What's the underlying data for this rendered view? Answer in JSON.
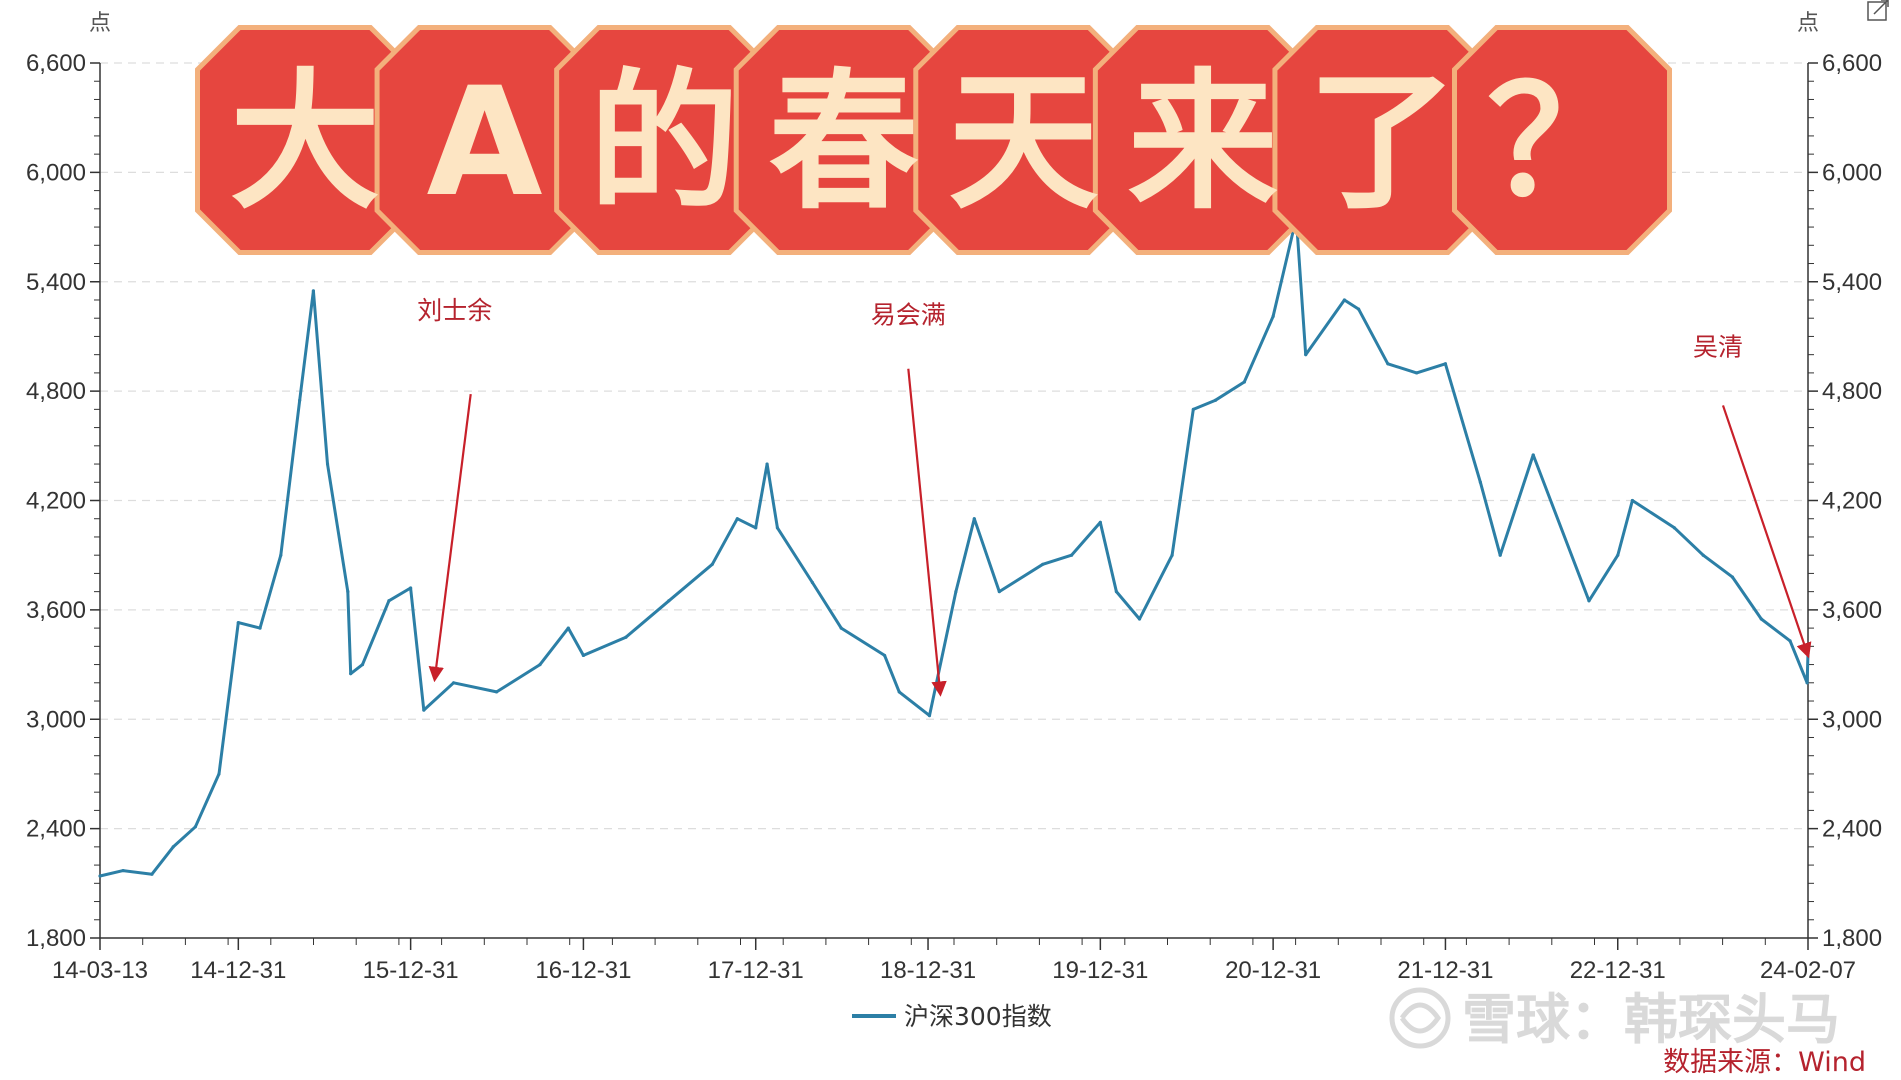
{
  "banner": {
    "chars": [
      "大",
      "A",
      "的",
      "春",
      "天",
      "来",
      "了",
      "？"
    ],
    "fill_color": "#e6463f",
    "border_color": "#f3b07c",
    "text_color": "#fde5c3"
  },
  "watermark": {
    "text": "雪球：韩琛头马",
    "logo_icon": "snowball-logo-icon"
  },
  "source": {
    "text": "数据来源：Wind"
  },
  "export_icon": "external-link-icon",
  "chart_data": {
    "type": "line",
    "title": "",
    "y_unit_left": "点",
    "y_unit_right": "点",
    "ylim": [
      1800,
      6600
    ],
    "y_ticks": [
      1800,
      2400,
      3000,
      3600,
      4200,
      4800,
      5400,
      6000,
      6600
    ],
    "y_tick_labels": [
      "1,800",
      "2,400",
      "3,000",
      "3,600",
      "4,200",
      "4,800",
      "5,400",
      "6,000",
      "6,600"
    ],
    "x_range": [
      "2014-03-13",
      "2024-02-07"
    ],
    "x_ticks": [
      "2014-03-13",
      "2014-12-31",
      "2015-12-31",
      "2016-12-31",
      "2017-12-31",
      "2018-12-31",
      "2019-12-31",
      "2020-12-31",
      "2021-12-31",
      "2022-12-31",
      "2024-02-07"
    ],
    "x_tick_labels": [
      "14-03-13",
      "14-12-31",
      "15-12-31",
      "16-12-31",
      "17-12-31",
      "18-12-31",
      "19-12-31",
      "20-12-31",
      "21-12-31",
      "22-12-31",
      "24-02-07"
    ],
    "grid": true,
    "legend_position": "bottom-center",
    "line_color": "#2c7fa6",
    "annotation_color": "#c8202a",
    "series": [
      {
        "name": "沪深300指数",
        "x": [
          "2014-03-13",
          "2014-05-01",
          "2014-07-01",
          "2014-08-15",
          "2014-10-01",
          "2014-11-20",
          "2014-12-31",
          "2015-02-15",
          "2015-03-31",
          "2015-05-10",
          "2015-06-08",
          "2015-07-08",
          "2015-08-20",
          "2015-08-26",
          "2015-09-20",
          "2015-11-15",
          "2015-12-31",
          "2016-01-28",
          "2016-03-31",
          "2016-06-30",
          "2016-09-30",
          "2016-11-29",
          "2016-12-31",
          "2017-03-31",
          "2017-06-30",
          "2017-09-30",
          "2017-11-22",
          "2017-12-31",
          "2018-01-24",
          "2018-02-15",
          "2018-04-30",
          "2018-06-30",
          "2018-09-30",
          "2018-10-31",
          "2019-01-03",
          "2019-02-28",
          "2019-04-08",
          "2019-05-31",
          "2019-08-31",
          "2019-10-31",
          "2019-12-31",
          "2020-02-03",
          "2020-03-23",
          "2020-05-31",
          "2020-07-15",
          "2020-08-31",
          "2020-10-31",
          "2020-12-31",
          "2021-02-18",
          "2021-03-10",
          "2021-05-31",
          "2021-06-30",
          "2021-08-31",
          "2021-10-31",
          "2021-12-31",
          "2022-03-15",
          "2022-04-26",
          "2022-07-05",
          "2022-10-31",
          "2022-12-31",
          "2023-01-31",
          "2023-04-30",
          "2023-06-30",
          "2023-08-31",
          "2023-10-31",
          "2023-12-31",
          "2024-02-05",
          "2024-02-07"
        ],
        "values": [
          2140,
          2170,
          2150,
          2300,
          2410,
          2700,
          3530,
          3500,
          3900,
          4750,
          5350,
          4400,
          3700,
          3250,
          3300,
          3650,
          3720,
          3050,
          3200,
          3150,
          3300,
          3500,
          3350,
          3450,
          3650,
          3850,
          4100,
          4050,
          4400,
          4050,
          3750,
          3500,
          3350,
          3150,
          3020,
          3700,
          4100,
          3700,
          3850,
          3900,
          4080,
          3700,
          3550,
          3900,
          4700,
          4750,
          4850,
          5210,
          5750,
          5000,
          5300,
          5250,
          4950,
          4900,
          4950,
          4300,
          3900,
          4450,
          3650,
          3900,
          4200,
          4050,
          3900,
          3780,
          3550,
          3430,
          3200,
          3360
        ],
        "color": "#2c7fa6"
      }
    ],
    "annotations": [
      {
        "label": "刘士余",
        "x": "2016-02-20",
        "y": 3220
      },
      {
        "label": "易会满",
        "x": "2019-01-26",
        "y": 3140
      },
      {
        "label": "吴清",
        "x": "2024-02-07",
        "y": 3350
      }
    ]
  }
}
